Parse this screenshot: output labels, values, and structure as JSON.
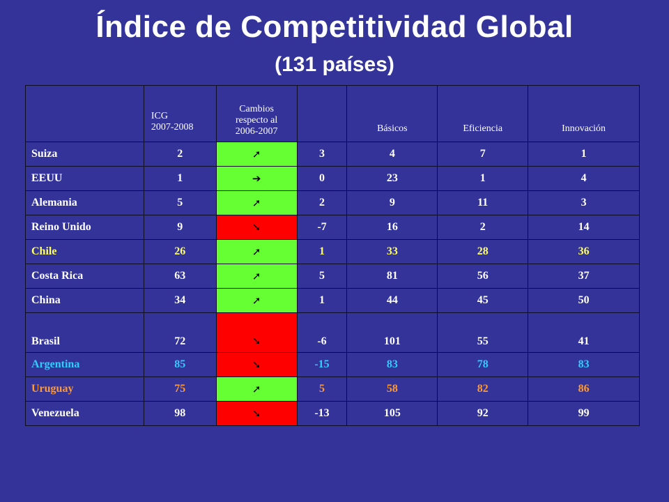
{
  "title": "Índice de Competitividad Global",
  "subtitle": "(131 países)",
  "headers": {
    "icg": [
      "ICG",
      "2007-2008"
    ],
    "cambios": [
      "Cambios",
      "respecto al",
      "2006-2007"
    ],
    "basicos": "Básicos",
    "eficiencia": "Eficiencia",
    "innovacion": "Innovación"
  },
  "colors": {
    "background": "#333399",
    "up": "#66ff33",
    "down": "#ff0000",
    "chile": "#ffff66",
    "argentina": "#33ccff",
    "uruguay": "#ff9933"
  },
  "rows": [
    {
      "country": "Suiza",
      "icg": "2",
      "trend": "up",
      "arrow": "➚",
      "cambio": "3",
      "basicos": "4",
      "eficiencia": "7",
      "innovacion": "1",
      "color": "white"
    },
    {
      "country": "EEUU",
      "icg": "1",
      "trend": "flat",
      "arrow": "➔",
      "cambio": "0",
      "basicos": "23",
      "eficiencia": "1",
      "innovacion": "4",
      "color": "white"
    },
    {
      "country": "Alemania",
      "icg": "5",
      "trend": "up",
      "arrow": "➚",
      "cambio": "2",
      "basicos": "9",
      "eficiencia": "11",
      "innovacion": "3",
      "color": "white"
    },
    {
      "country": "Reino Unido",
      "icg": "9",
      "trend": "down",
      "arrow": "➘",
      "cambio": "-7",
      "basicos": "16",
      "eficiencia": "2",
      "innovacion": "14",
      "color": "white"
    },
    {
      "country": "Chile",
      "icg": "26",
      "trend": "up",
      "arrow": "➚",
      "cambio": "1",
      "basicos": "33",
      "eficiencia": "28",
      "innovacion": "36",
      "color": "yellow"
    },
    {
      "country": "Costa Rica",
      "icg": "63",
      "trend": "up",
      "arrow": "➚",
      "cambio": "5",
      "basicos": "81",
      "eficiencia": "56",
      "innovacion": "37",
      "color": "white"
    },
    {
      "country": "China",
      "icg": "34",
      "trend": "up",
      "arrow": "➚",
      "cambio": "1",
      "basicos": "44",
      "eficiencia": "45",
      "innovacion": "50",
      "color": "white"
    },
    {
      "country": "Brasil",
      "icg": "72",
      "trend": "down",
      "arrow": "➘",
      "cambio": "-6",
      "basicos": "101",
      "eficiencia": "55",
      "innovacion": "41",
      "color": "white"
    },
    {
      "country": "Argentina",
      "icg": "85",
      "trend": "down",
      "arrow": "➘",
      "cambio": "-15",
      "basicos": "83",
      "eficiencia": "78",
      "innovacion": "83",
      "color": "cyan"
    },
    {
      "country": "Uruguay",
      "icg": "75",
      "trend": "up",
      "arrow": "➚",
      "cambio": "5",
      "basicos": "58",
      "eficiencia": "82",
      "innovacion": "86",
      "color": "orange"
    },
    {
      "country": "Venezuela",
      "icg": "98",
      "trend": "down",
      "arrow": "➘",
      "cambio": "-13",
      "basicos": "105",
      "eficiencia": "92",
      "innovacion": "99",
      "color": "white"
    }
  ]
}
